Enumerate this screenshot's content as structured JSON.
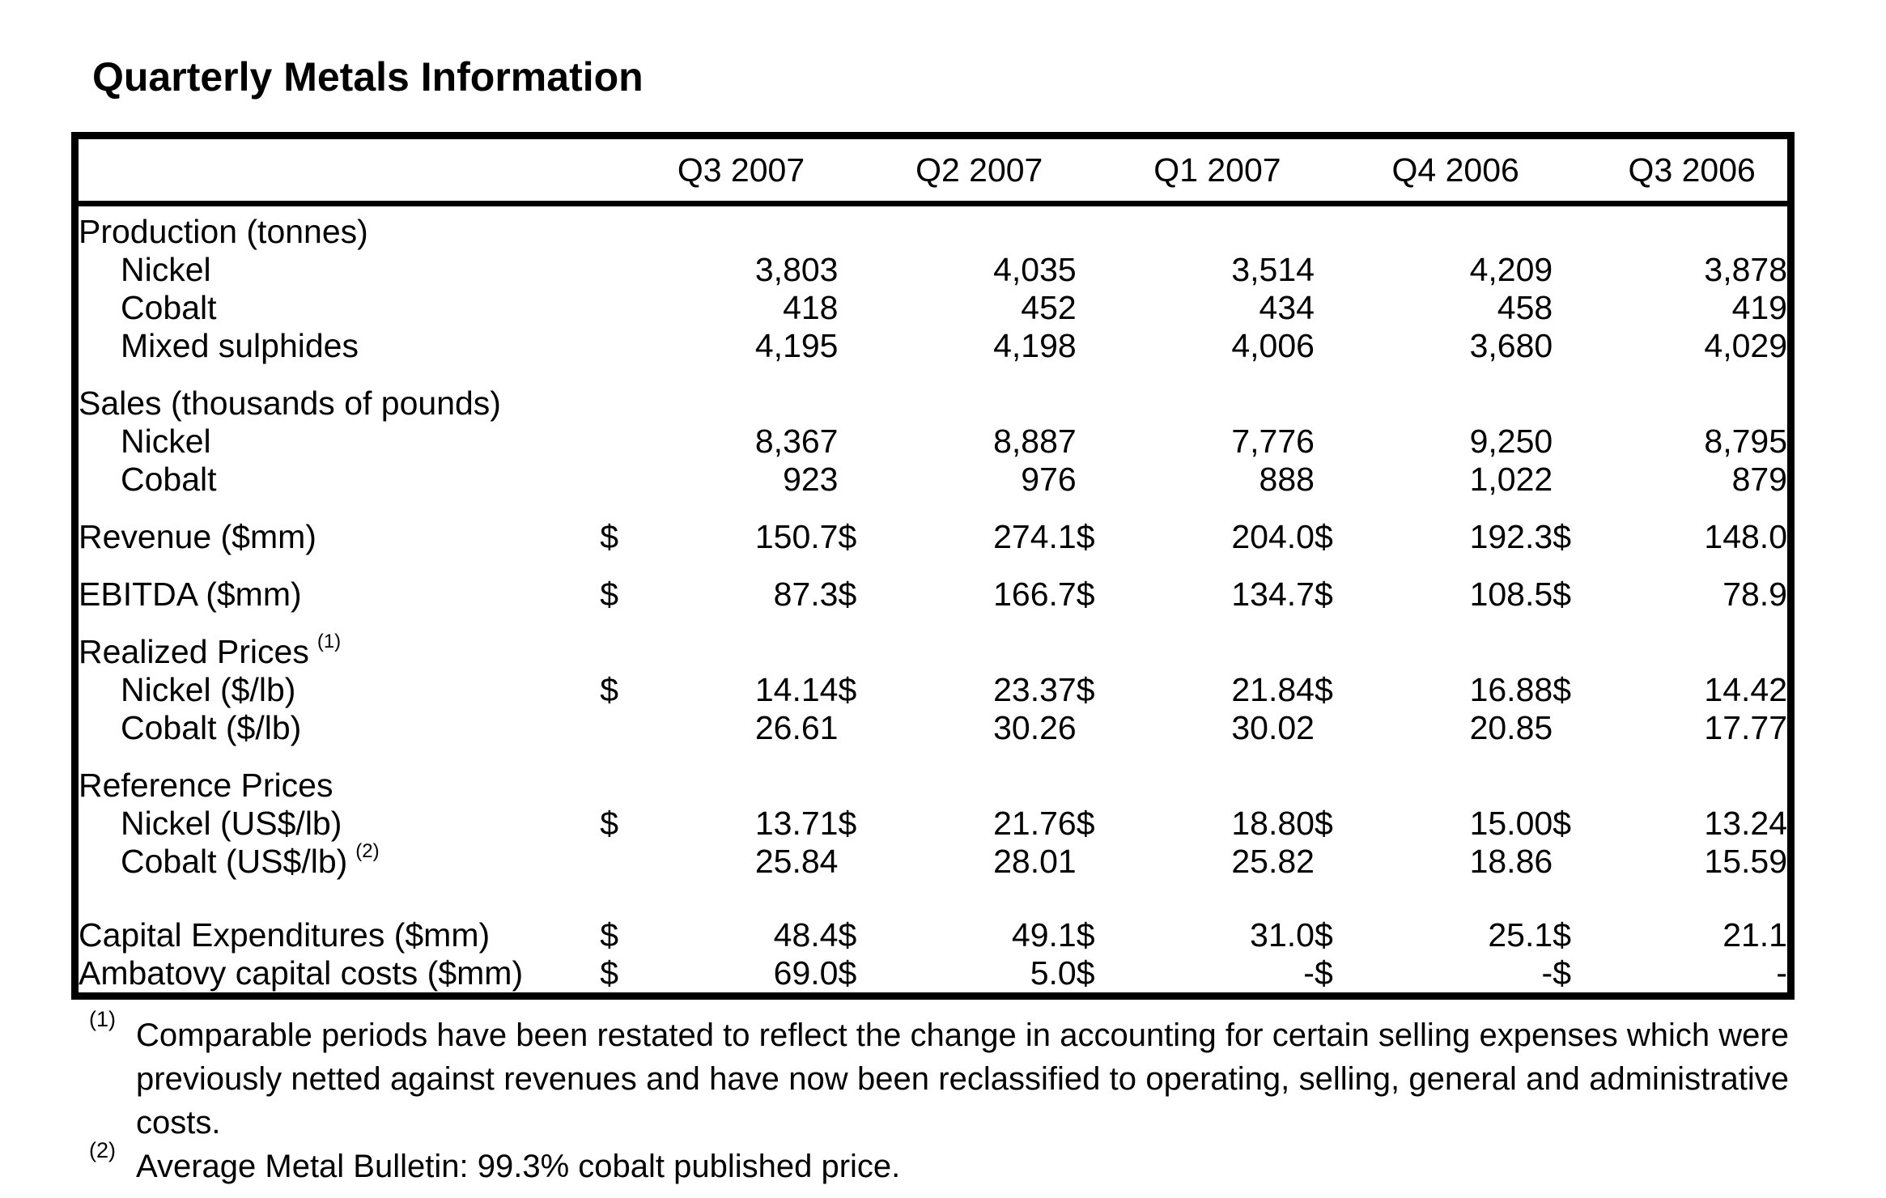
{
  "title": "Quarterly Metals Information",
  "table": {
    "currency_symbol": "$",
    "quarters": [
      "Q3 2007",
      "Q2 2007",
      "Q1 2007",
      "Q4 2006",
      "Q3 2006"
    ],
    "rows": [
      {
        "kind": "section",
        "label": "Production (tonnes)"
      },
      {
        "kind": "item",
        "label": "Nickel",
        "dollar": false,
        "values": [
          "3,803",
          "4,035",
          "3,514",
          "4,209",
          "3,878"
        ]
      },
      {
        "kind": "item",
        "label": "Cobalt",
        "dollar": false,
        "values": [
          "418",
          "452",
          "434",
          "458",
          "419"
        ]
      },
      {
        "kind": "item",
        "label": "Mixed sulphides",
        "dollar": false,
        "values": [
          "4,195",
          "4,198",
          "4,006",
          "3,680",
          "4,029"
        ]
      },
      {
        "kind": "gap"
      },
      {
        "kind": "section",
        "label": "Sales (thousands of pounds)"
      },
      {
        "kind": "item",
        "label": "Nickel",
        "dollar": false,
        "values": [
          "8,367",
          "8,887",
          "7,776",
          "9,250",
          "8,795"
        ]
      },
      {
        "kind": "item",
        "label": "Cobalt",
        "dollar": false,
        "values": [
          "923",
          "976",
          "888",
          "1,022",
          "879"
        ]
      },
      {
        "kind": "gap"
      },
      {
        "kind": "row",
        "label": "Revenue ($mm)",
        "dollar": true,
        "values": [
          "150.7",
          "274.1",
          "204.0",
          "192.3",
          "148.0"
        ]
      },
      {
        "kind": "gap"
      },
      {
        "kind": "row",
        "label": "EBITDA ($mm)",
        "dollar": true,
        "values": [
          "87.3",
          "166.7",
          "134.7",
          "108.5",
          "78.9"
        ]
      },
      {
        "kind": "gap"
      },
      {
        "kind": "section",
        "label": "Realized Prices",
        "sup": "(1)"
      },
      {
        "kind": "item",
        "label": "Nickel ($/lb)",
        "dollar": true,
        "values": [
          "14.14",
          "23.37",
          "21.84",
          "16.88",
          "14.42"
        ]
      },
      {
        "kind": "item",
        "label": "Cobalt ($/lb)",
        "dollar": false,
        "values": [
          "26.61",
          "30.26",
          "30.02",
          "20.85",
          "17.77"
        ]
      },
      {
        "kind": "gap"
      },
      {
        "kind": "section",
        "label": "Reference Prices"
      },
      {
        "kind": "item",
        "label": "Nickel (US$/lb)",
        "dollar": true,
        "values": [
          "13.71",
          "21.76",
          "18.80",
          "15.00",
          "13.24"
        ]
      },
      {
        "kind": "item",
        "label": "Cobalt (US$/lb)",
        "sup": "(2)",
        "dollar": false,
        "values": [
          "25.84",
          "28.01",
          "25.82",
          "18.86",
          "15.59"
        ]
      },
      {
        "kind": "biggap"
      },
      {
        "kind": "row",
        "label": "Capital Expenditures ($mm)",
        "dollar": true,
        "values": [
          "48.4",
          "49.1",
          "31.0",
          "25.1",
          "21.1"
        ]
      },
      {
        "kind": "row",
        "label": "Ambatovy capital costs ($mm)",
        "dollar": true,
        "values": [
          "69.0",
          "5.0",
          "-",
          "-",
          "-"
        ]
      }
    ]
  },
  "footnotes": [
    {
      "marker": "(1)",
      "text": "Comparable periods have been restated to reflect the change in accounting for certain selling expenses which were previously netted against revenues and have now been reclassified to operating, selling, general and administrative costs."
    },
    {
      "marker": "(2)",
      "text": "Average Metal Bulletin: 99.3% cobalt published price."
    }
  ]
}
